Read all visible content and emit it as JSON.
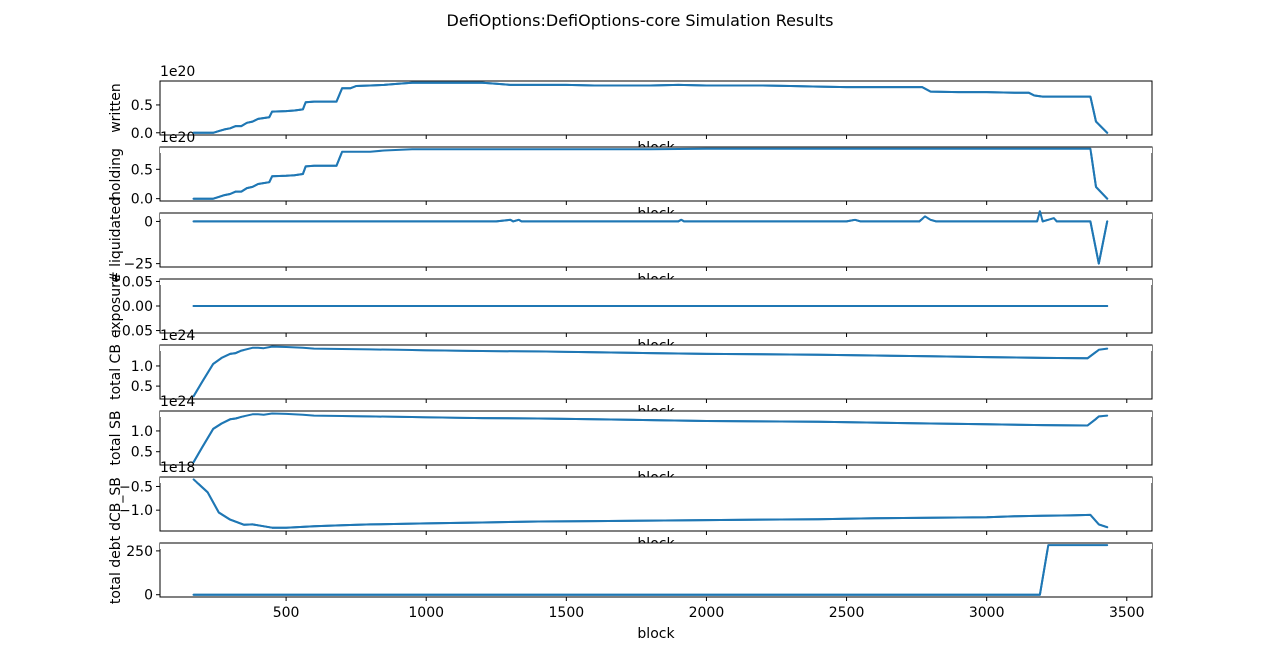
{
  "figure": {
    "title": "DefiOptions:DefiOptions-core Simulation Results",
    "line_color": "#1f77b4"
  },
  "chart_data": [
    {
      "type": "line",
      "ylabel": "written",
      "xlabel": "block",
      "offset_text": "1e20",
      "xlim": [
        50,
        3590
      ],
      "ylim": [
        -0.04,
        0.93
      ],
      "yticks": [
        0.0,
        0.5
      ],
      "ytick_labels": [
        "0.0",
        "0.5"
      ],
      "x": [
        170,
        240,
        260,
        280,
        300,
        320,
        340,
        360,
        380,
        400,
        440,
        450,
        500,
        530,
        560,
        570,
        600,
        640,
        680,
        700,
        730,
        750,
        800,
        850,
        900,
        950,
        1000,
        1050,
        1100,
        1150,
        1200,
        1250,
        1300,
        1400,
        1500,
        1600,
        1700,
        1800,
        1900,
        2000,
        2100,
        2200,
        2300,
        2400,
        2500,
        2600,
        2700,
        2770,
        2800,
        2900,
        3000,
        3100,
        3150,
        3170,
        3200,
        3300,
        3370,
        3390,
        3430
      ],
      "y": [
        0.0,
        0.0,
        0.03,
        0.06,
        0.08,
        0.12,
        0.12,
        0.18,
        0.2,
        0.25,
        0.28,
        0.38,
        0.39,
        0.4,
        0.42,
        0.55,
        0.56,
        0.56,
        0.56,
        0.8,
        0.8,
        0.84,
        0.85,
        0.86,
        0.88,
        0.9,
        0.9,
        0.9,
        0.9,
        0.9,
        0.9,
        0.88,
        0.86,
        0.86,
        0.86,
        0.85,
        0.85,
        0.85,
        0.86,
        0.85,
        0.85,
        0.85,
        0.84,
        0.83,
        0.82,
        0.82,
        0.82,
        0.82,
        0.74,
        0.73,
        0.73,
        0.72,
        0.72,
        0.67,
        0.65,
        0.65,
        0.65,
        0.2,
        0.0
      ]
    },
    {
      "type": "line",
      "ylabel": "holding",
      "xlabel": "block",
      "offset_text": "1e20",
      "xlim": [
        50,
        3590
      ],
      "ylim": [
        -0.04,
        0.88
      ],
      "yticks": [
        0.0,
        0.5
      ],
      "ytick_labels": [
        "0.0",
        "0.5"
      ],
      "x": [
        170,
        240,
        260,
        280,
        300,
        320,
        340,
        360,
        380,
        400,
        440,
        450,
        500,
        530,
        560,
        570,
        600,
        640,
        680,
        700,
        730,
        750,
        800,
        850,
        900,
        950,
        1000,
        1100,
        1200,
        1500,
        1800,
        2000,
        2500,
        3000,
        3300,
        3370,
        3390,
        3430
      ],
      "y": [
        0.0,
        0.0,
        0.03,
        0.06,
        0.08,
        0.12,
        0.12,
        0.18,
        0.2,
        0.25,
        0.28,
        0.38,
        0.39,
        0.4,
        0.42,
        0.55,
        0.56,
        0.56,
        0.56,
        0.8,
        0.8,
        0.8,
        0.8,
        0.82,
        0.83,
        0.84,
        0.84,
        0.84,
        0.84,
        0.84,
        0.84,
        0.85,
        0.85,
        0.85,
        0.85,
        0.85,
        0.2,
        0.0
      ]
    },
    {
      "type": "line",
      "ylabel": "# liquidated",
      "xlabel": "block",
      "xlim": [
        50,
        3590
      ],
      "ylim": [
        -27,
        5
      ],
      "yticks": [
        0,
        -25
      ],
      "ytick_labels": [
        "0",
        "−25"
      ],
      "x": [
        170,
        500,
        1000,
        1250,
        1300,
        1310,
        1330,
        1340,
        1500,
        1800,
        1900,
        1910,
        1920,
        2000,
        2200,
        2300,
        2400,
        2500,
        2530,
        2550,
        2700,
        2760,
        2780,
        2800,
        2820,
        3000,
        3180,
        3190,
        3200,
        3240,
        3250,
        3260,
        3370,
        3400,
        3430
      ],
      "y": [
        0,
        0,
        0,
        0,
        1,
        0,
        1,
        0,
        0,
        0,
        0,
        1,
        0,
        0,
        0,
        0,
        0,
        0,
        1,
        0,
        0,
        0,
        3,
        1,
        0,
        0,
        0,
        6,
        0,
        2,
        0,
        0,
        0,
        -25,
        0
      ]
    },
    {
      "type": "line",
      "ylabel": "exposure",
      "xlabel": "block",
      "xlim": [
        50,
        3590
      ],
      "ylim": [
        -0.055,
        0.055
      ],
      "yticks": [
        0.05,
        0.0,
        -0.05
      ],
      "ytick_labels": [
        "0.05",
        "0.00",
        "−0.05"
      ],
      "x": [
        170,
        3430
      ],
      "y": [
        0.0,
        0.0
      ]
    },
    {
      "type": "line",
      "ylabel": "total CB",
      "xlabel": "block",
      "offset_text": "1e24",
      "xlim": [
        50,
        3590
      ],
      "ylim": [
        0.18,
        1.52
      ],
      "yticks": [
        1.0,
        0.5
      ],
      "ytick_labels": [
        "1.0",
        "0.5"
      ],
      "x": [
        170,
        200,
        240,
        270,
        300,
        320,
        340,
        380,
        400,
        420,
        450,
        500,
        560,
        600,
        700,
        800,
        900,
        1000,
        1200,
        1400,
        1600,
        1800,
        2000,
        2200,
        2400,
        2600,
        2800,
        3000,
        3200,
        3360,
        3390,
        3400,
        3430
      ],
      "y": [
        0.25,
        0.6,
        1.05,
        1.2,
        1.3,
        1.32,
        1.38,
        1.45,
        1.45,
        1.44,
        1.48,
        1.47,
        1.45,
        1.43,
        1.42,
        1.41,
        1.4,
        1.39,
        1.37,
        1.36,
        1.34,
        1.32,
        1.3,
        1.29,
        1.28,
        1.26,
        1.24,
        1.22,
        1.2,
        1.19,
        1.35,
        1.4,
        1.43
      ]
    },
    {
      "type": "line",
      "ylabel": "total SB",
      "xlabel": "block",
      "offset_text": "1e24",
      "xlim": [
        50,
        3590
      ],
      "ylim": [
        0.18,
        1.48
      ],
      "yticks": [
        1.0,
        0.5
      ],
      "ytick_labels": [
        "1.0",
        "0.5"
      ],
      "x": [
        170,
        200,
        240,
        270,
        300,
        320,
        340,
        380,
        400,
        420,
        450,
        500,
        560,
        600,
        700,
        800,
        900,
        1000,
        1200,
        1400,
        1600,
        1800,
        2000,
        2200,
        2400,
        2600,
        2800,
        3000,
        3200,
        3360,
        3390,
        3400,
        3430
      ],
      "y": [
        0.25,
        0.6,
        1.05,
        1.18,
        1.28,
        1.3,
        1.34,
        1.4,
        1.4,
        1.39,
        1.42,
        1.41,
        1.39,
        1.37,
        1.36,
        1.35,
        1.34,
        1.33,
        1.31,
        1.3,
        1.28,
        1.26,
        1.24,
        1.23,
        1.22,
        1.2,
        1.18,
        1.16,
        1.14,
        1.13,
        1.29,
        1.35,
        1.37
      ]
    },
    {
      "type": "line",
      "ylabel": "dCB_SB",
      "xlabel": "block",
      "offset_text": "1e18",
      "xlim": [
        50,
        3590
      ],
      "ylim": [
        -1.44,
        -0.3
      ],
      "yticks": [
        -0.5,
        -1.0
      ],
      "ytick_labels": [
        "−0.5",
        "−1.0"
      ],
      "x": [
        170,
        220,
        260,
        300,
        350,
        380,
        400,
        450,
        500,
        600,
        700,
        800,
        1000,
        1200,
        1400,
        1600,
        1800,
        2000,
        2200,
        2400,
        2600,
        2800,
        3000,
        3100,
        3200,
        3300,
        3370,
        3400,
        3430
      ],
      "y": [
        -0.35,
        -0.62,
        -1.05,
        -1.2,
        -1.31,
        -1.3,
        -1.32,
        -1.37,
        -1.37,
        -1.34,
        -1.32,
        -1.3,
        -1.28,
        -1.26,
        -1.24,
        -1.23,
        -1.22,
        -1.21,
        -1.2,
        -1.19,
        -1.17,
        -1.16,
        -1.15,
        -1.13,
        -1.12,
        -1.11,
        -1.1,
        -1.3,
        -1.36
      ]
    },
    {
      "type": "line",
      "ylabel": "total debt",
      "xlabel": "block",
      "xlim": [
        50,
        3590
      ],
      "ylim": [
        -13,
        295
      ],
      "yticks": [
        250,
        0
      ],
      "ytick_labels": [
        "250",
        "0"
      ],
      "x": [
        170,
        1000,
        2000,
        3000,
        3190,
        3220,
        3430
      ],
      "y": [
        0,
        0,
        0,
        0,
        0,
        283,
        283
      ]
    }
  ],
  "shared_x_axis": {
    "xticks": [
      500,
      1000,
      1500,
      2000,
      2500,
      3000,
      3500
    ],
    "xtick_labels": [
      "500",
      "1000",
      "1500",
      "2000",
      "2500",
      "3000",
      "3500"
    ],
    "xlabel": "block"
  }
}
